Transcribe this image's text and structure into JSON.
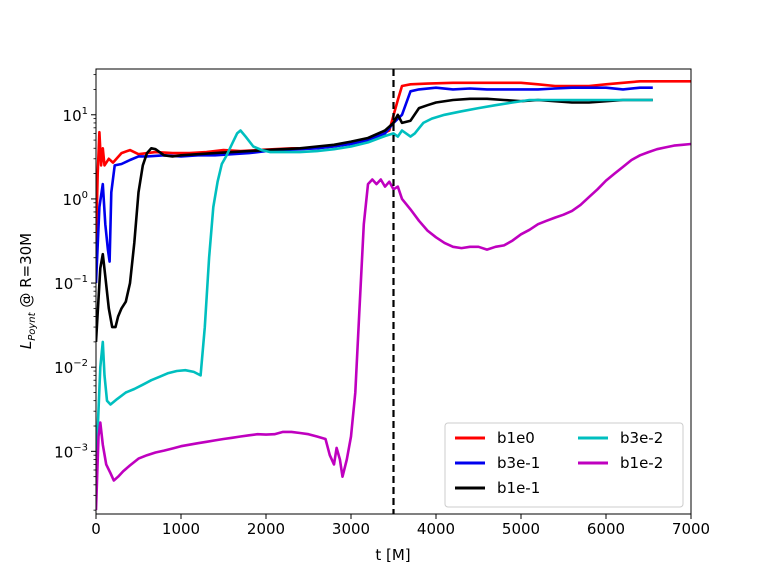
{
  "chart_data": {
    "type": "line",
    "xlabel": "t [M]",
    "ylabel": {
      "main": "L",
      "subscript": "Poynt",
      "suffix": " @ R=30M"
    },
    "xlim": [
      0,
      7000
    ],
    "ylim": [
      0.00018,
      35
    ],
    "yscale": "log",
    "x_ticks": [
      0,
      1000,
      2000,
      3000,
      4000,
      5000,
      6000,
      7000
    ],
    "y_ticks": [
      {
        "value": 0.001,
        "base": "10",
        "exp": "−3"
      },
      {
        "value": 0.01,
        "base": "10",
        "exp": "−2"
      },
      {
        "value": 0.1,
        "base": "10",
        "exp": "−1"
      },
      {
        "value": 1,
        "base": "10",
        "exp": "0"
      },
      {
        "value": 10,
        "base": "10",
        "exp": "1"
      }
    ],
    "vline": {
      "x": 3500,
      "style": "dashed",
      "color": "#000000"
    },
    "grid": false,
    "legend": {
      "placement": "lower-right",
      "columns": 2
    },
    "series": [
      {
        "name": "b1e0",
        "color": "#ff0000",
        "points": [
          [
            0,
            0.3
          ],
          [
            20,
            2
          ],
          [
            40,
            6.2
          ],
          [
            60,
            2.5
          ],
          [
            80,
            4
          ],
          [
            100,
            2.5
          ],
          [
            150,
            3
          ],
          [
            200,
            2.7
          ],
          [
            300,
            3.5
          ],
          [
            400,
            3.8
          ],
          [
            500,
            3.4
          ],
          [
            700,
            3.6
          ],
          [
            900,
            3.5
          ],
          [
            1100,
            3.5
          ],
          [
            1300,
            3.6
          ],
          [
            1500,
            3.8
          ],
          [
            1700,
            3.7
          ],
          [
            1900,
            3.8
          ],
          [
            2100,
            3.9
          ],
          [
            2300,
            4
          ],
          [
            2500,
            4
          ],
          [
            2700,
            4.2
          ],
          [
            2900,
            4.5
          ],
          [
            3100,
            4.8
          ],
          [
            3300,
            5.5
          ],
          [
            3450,
            6.5
          ],
          [
            3550,
            15
          ],
          [
            3600,
            22
          ],
          [
            3700,
            23
          ],
          [
            3900,
            23.5
          ],
          [
            4200,
            24
          ],
          [
            4500,
            24
          ],
          [
            4800,
            24
          ],
          [
            5000,
            24
          ],
          [
            5200,
            23
          ],
          [
            5400,
            22
          ],
          [
            5600,
            22
          ],
          [
            5800,
            22
          ],
          [
            6000,
            23
          ],
          [
            6200,
            24
          ],
          [
            6400,
            25
          ],
          [
            6600,
            25
          ],
          [
            6800,
            25
          ],
          [
            7000,
            25
          ]
        ]
      },
      {
        "name": "b3e-1",
        "color": "#0000ee",
        "points": [
          [
            0,
            0.1
          ],
          [
            40,
            0.8
          ],
          [
            80,
            1.5
          ],
          [
            110,
            0.5
          ],
          [
            140,
            0.25
          ],
          [
            160,
            0.18
          ],
          [
            180,
            1.2
          ],
          [
            220,
            2.5
          ],
          [
            300,
            2.6
          ],
          [
            400,
            2.9
          ],
          [
            500,
            3.2
          ],
          [
            600,
            3.2
          ],
          [
            800,
            3.3
          ],
          [
            1000,
            3.2
          ],
          [
            1200,
            3.3
          ],
          [
            1400,
            3.3
          ],
          [
            1600,
            3.4
          ],
          [
            1800,
            3.5
          ],
          [
            2000,
            3.7
          ],
          [
            2200,
            3.8
          ],
          [
            2400,
            3.9
          ],
          [
            2600,
            4
          ],
          [
            2800,
            4.2
          ],
          [
            3000,
            4.5
          ],
          [
            3200,
            5
          ],
          [
            3400,
            6
          ],
          [
            3500,
            8
          ],
          [
            3600,
            10
          ],
          [
            3700,
            19
          ],
          [
            3800,
            20
          ],
          [
            4000,
            21
          ],
          [
            4200,
            20
          ],
          [
            4400,
            20.5
          ],
          [
            4600,
            20
          ],
          [
            4800,
            20
          ],
          [
            5000,
            20
          ],
          [
            5200,
            20
          ],
          [
            5400,
            20.5
          ],
          [
            5600,
            21
          ],
          [
            5800,
            21
          ],
          [
            6000,
            21
          ],
          [
            6200,
            20
          ],
          [
            6400,
            21
          ],
          [
            6550,
            21
          ]
        ]
      },
      {
        "name": "b1e-1",
        "color": "#000000",
        "points": [
          [
            0,
            0.02
          ],
          [
            50,
            0.15
          ],
          [
            80,
            0.22
          ],
          [
            110,
            0.12
          ],
          [
            150,
            0.05
          ],
          [
            190,
            0.03
          ],
          [
            230,
            0.03
          ],
          [
            260,
            0.04
          ],
          [
            300,
            0.05
          ],
          [
            350,
            0.06
          ],
          [
            400,
            0.1
          ],
          [
            450,
            0.3
          ],
          [
            500,
            1.2
          ],
          [
            550,
            2.5
          ],
          [
            600,
            3.5
          ],
          [
            650,
            4
          ],
          [
            700,
            3.9
          ],
          [
            800,
            3.3
          ],
          [
            900,
            3.2
          ],
          [
            1000,
            3.3
          ],
          [
            1200,
            3.4
          ],
          [
            1400,
            3.5
          ],
          [
            1600,
            3.6
          ],
          [
            1800,
            3.7
          ],
          [
            2000,
            3.8
          ],
          [
            2200,
            3.9
          ],
          [
            2400,
            4
          ],
          [
            2600,
            4.2
          ],
          [
            2800,
            4.4
          ],
          [
            3000,
            4.8
          ],
          [
            3200,
            5.3
          ],
          [
            3400,
            6.5
          ],
          [
            3500,
            8
          ],
          [
            3550,
            10
          ],
          [
            3600,
            8
          ],
          [
            3700,
            8.5
          ],
          [
            3800,
            12
          ],
          [
            3900,
            13
          ],
          [
            4000,
            14
          ],
          [
            4200,
            15
          ],
          [
            4400,
            15.5
          ],
          [
            4600,
            15.5
          ],
          [
            4800,
            15
          ],
          [
            5000,
            14.5
          ],
          [
            5200,
            15
          ],
          [
            5400,
            14.5
          ],
          [
            5600,
            14
          ],
          [
            5800,
            14
          ],
          [
            6000,
            14.5
          ],
          [
            6200,
            15
          ],
          [
            6400,
            15
          ],
          [
            6550,
            15
          ]
        ]
      },
      {
        "name": "b3e-2",
        "color": "#00bfbf",
        "points": [
          [
            0,
            0.0006
          ],
          [
            50,
            0.01
          ],
          [
            80,
            0.02
          ],
          [
            100,
            0.008
          ],
          [
            130,
            0.004
          ],
          [
            170,
            0.0036
          ],
          [
            250,
            0.0042
          ],
          [
            350,
            0.005
          ],
          [
            450,
            0.0055
          ],
          [
            550,
            0.0062
          ],
          [
            650,
            0.007
          ],
          [
            750,
            0.0077
          ],
          [
            850,
            0.0085
          ],
          [
            950,
            0.009
          ],
          [
            1050,
            0.0092
          ],
          [
            1150,
            0.0088
          ],
          [
            1230,
            0.008
          ],
          [
            1280,
            0.03
          ],
          [
            1330,
            0.2
          ],
          [
            1380,
            0.8
          ],
          [
            1430,
            1.6
          ],
          [
            1480,
            2.6
          ],
          [
            1530,
            3.2
          ],
          [
            1600,
            4.5
          ],
          [
            1660,
            6
          ],
          [
            1700,
            6.5
          ],
          [
            1760,
            5.5
          ],
          [
            1850,
            4.2
          ],
          [
            1950,
            3.8
          ],
          [
            2050,
            3.6
          ],
          [
            2200,
            3.6
          ],
          [
            2400,
            3.6
          ],
          [
            2600,
            3.7
          ],
          [
            2800,
            3.9
          ],
          [
            3000,
            4.2
          ],
          [
            3200,
            4.7
          ],
          [
            3400,
            5.6
          ],
          [
            3500,
            6
          ],
          [
            3550,
            5.5
          ],
          [
            3600,
            6.5
          ],
          [
            3700,
            5.5
          ],
          [
            3750,
            6
          ],
          [
            3850,
            8
          ],
          [
            3950,
            9
          ],
          [
            4100,
            10
          ],
          [
            4300,
            11
          ],
          [
            4500,
            12
          ],
          [
            4700,
            13
          ],
          [
            4900,
            14
          ],
          [
            5100,
            15
          ],
          [
            5300,
            15
          ],
          [
            5500,
            15
          ],
          [
            5800,
            15
          ],
          [
            6100,
            15
          ],
          [
            6400,
            15
          ],
          [
            6550,
            15
          ]
        ]
      },
      {
        "name": "b1e-2",
        "color": "#bf00bf",
        "points": [
          [
            0,
            0.0002
          ],
          [
            30,
            0.0015
          ],
          [
            50,
            0.0022
          ],
          [
            80,
            0.0012
          ],
          [
            120,
            0.0007
          ],
          [
            170,
            0.00055
          ],
          [
            210,
            0.00045
          ],
          [
            260,
            0.0005
          ],
          [
            320,
            0.00058
          ],
          [
            400,
            0.00068
          ],
          [
            500,
            0.00082
          ],
          [
            600,
            0.0009
          ],
          [
            700,
            0.00097
          ],
          [
            800,
            0.00102
          ],
          [
            900,
            0.00108
          ],
          [
            1000,
            0.00115
          ],
          [
            1100,
            0.0012
          ],
          [
            1200,
            0.00125
          ],
          [
            1300,
            0.0013
          ],
          [
            1400,
            0.00135
          ],
          [
            1500,
            0.0014
          ],
          [
            1600,
            0.00145
          ],
          [
            1700,
            0.0015
          ],
          [
            1800,
            0.00155
          ],
          [
            1900,
            0.0016
          ],
          [
            2000,
            0.00158
          ],
          [
            2100,
            0.0016
          ],
          [
            2200,
            0.0017
          ],
          [
            2300,
            0.0017
          ],
          [
            2400,
            0.00165
          ],
          [
            2500,
            0.0016
          ],
          [
            2600,
            0.0015
          ],
          [
            2700,
            0.0014
          ],
          [
            2750,
            0.0009
          ],
          [
            2800,
            0.0007
          ],
          [
            2830,
            0.0011
          ],
          [
            2870,
            0.0008
          ],
          [
            2900,
            0.0005
          ],
          [
            2950,
            0.0008
          ],
          [
            3000,
            0.0015
          ],
          [
            3050,
            0.005
          ],
          [
            3100,
            0.05
          ],
          [
            3150,
            0.5
          ],
          [
            3200,
            1.5
          ],
          [
            3250,
            1.7
          ],
          [
            3300,
            1.5
          ],
          [
            3350,
            1.7
          ],
          [
            3400,
            1.4
          ],
          [
            3450,
            1.6
          ],
          [
            3500,
            1.3
          ],
          [
            3550,
            1.4
          ],
          [
            3600,
            1.0
          ],
          [
            3700,
            0.75
          ],
          [
            3800,
            0.55
          ],
          [
            3900,
            0.42
          ],
          [
            4000,
            0.35
          ],
          [
            4100,
            0.3
          ],
          [
            4200,
            0.27
          ],
          [
            4300,
            0.26
          ],
          [
            4400,
            0.27
          ],
          [
            4500,
            0.27
          ],
          [
            4600,
            0.25
          ],
          [
            4700,
            0.27
          ],
          [
            4800,
            0.28
          ],
          [
            4900,
            0.32
          ],
          [
            5000,
            0.38
          ],
          [
            5100,
            0.43
          ],
          [
            5200,
            0.5
          ],
          [
            5300,
            0.55
          ],
          [
            5400,
            0.6
          ],
          [
            5500,
            0.65
          ],
          [
            5600,
            0.72
          ],
          [
            5700,
            0.85
          ],
          [
            5800,
            1.05
          ],
          [
            5900,
            1.3
          ],
          [
            6000,
            1.65
          ],
          [
            6100,
            2
          ],
          [
            6200,
            2.4
          ],
          [
            6300,
            2.9
          ],
          [
            6400,
            3.3
          ],
          [
            6500,
            3.6
          ],
          [
            6600,
            3.9
          ],
          [
            6700,
            4.1
          ],
          [
            6800,
            4.3
          ],
          [
            6900,
            4.4
          ],
          [
            7000,
            4.5
          ]
        ]
      }
    ]
  }
}
